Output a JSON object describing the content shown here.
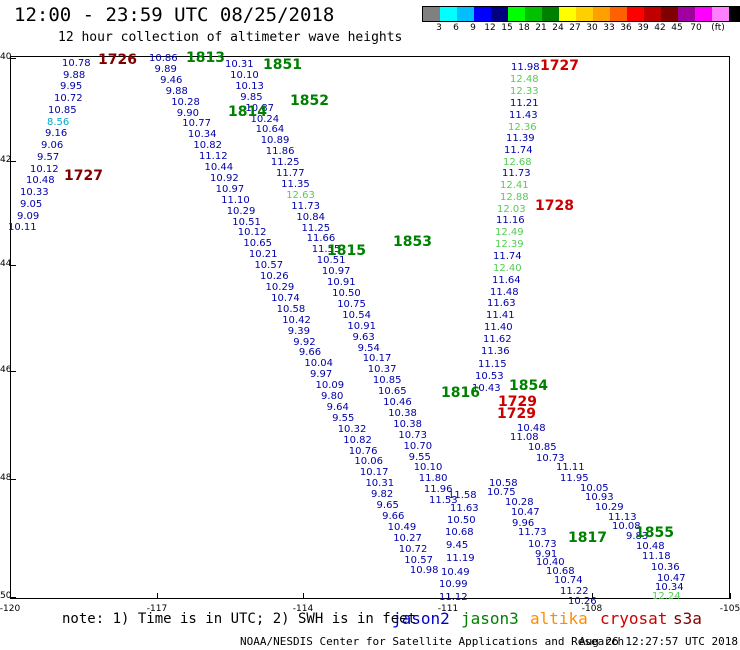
{
  "header": {
    "title": "12:00 - 23:59 UTC 08/25/2018",
    "subtitle": "12 hour collection of altimeter wave heights"
  },
  "colorbar": {
    "swatches": [
      "#808080",
      "#00ffff",
      "#00bfff",
      "#0000ff",
      "#000080",
      "#00ff00",
      "#00c000",
      "#008000",
      "#ffff00",
      "#ffd000",
      "#ffa000",
      "#ff6000",
      "#ff0000",
      "#c00000",
      "#800000",
      "#a000a0",
      "#ff00ff",
      "#ff80ff",
      "#000000"
    ],
    "labels": [
      "3",
      "6",
      "9",
      "12",
      "15",
      "18",
      "21",
      "24",
      "27",
      "30",
      "33",
      "36",
      "39",
      "42",
      "45",
      "70",
      "(ft)"
    ]
  },
  "axes": {
    "lat_labels": [
      "40",
      "42",
      "44",
      "46",
      "48",
      "50"
    ],
    "lon_labels": [
      "-120",
      "-117",
      "-114",
      "-111",
      "-108",
      "-105"
    ]
  },
  "legend": {
    "note": "note: 1) Time is in UTC; 2) SWH is in feet",
    "satellites": [
      {
        "name": "jason2",
        "color": "#0000cc"
      },
      {
        "name": "jason3",
        "color": "#008000"
      },
      {
        "name": "altika",
        "color": "#ff8c00"
      },
      {
        "name": "cryosat",
        "color": "#cc0000"
      },
      {
        "name": "s3a",
        "color": "#800000"
      }
    ]
  },
  "footer": {
    "credit": "NOAA/NESDIS Center for Satellite Applications and Research",
    "generated": "Aug 26 12:27:57 UTC 2018"
  },
  "orbit_labels": [
    {
      "text": "1726",
      "color": "#800000"
    },
    {
      "text": "1813",
      "color": "#008000"
    },
    {
      "text": "1851",
      "color": "#008000"
    },
    {
      "text": "1852",
      "color": "#008000"
    },
    {
      "text": "1814",
      "color": "#008000"
    },
    {
      "text": "1727",
      "color": "#800000"
    },
    {
      "text": "1727",
      "color": "#cc0000"
    },
    {
      "text": "1728",
      "color": "#cc0000"
    },
    {
      "text": "1815",
      "color": "#008000"
    },
    {
      "text": "1853",
      "color": "#008000"
    },
    {
      "text": "1854",
      "color": "#008000"
    },
    {
      "text": "1816",
      "color": "#008000"
    },
    {
      "text": "1729",
      "color": "#cc0000"
    },
    {
      "text": "1729",
      "color": "#cc0000"
    },
    {
      "text": "1817",
      "color": "#008000"
    },
    {
      "text": "1855",
      "color": "#008000"
    }
  ],
  "tracks": {
    "track_a": [
      "10.78",
      "9.88",
      "9.95",
      "10.72",
      "10.85",
      "8.56",
      "9.16",
      "9.06",
      "9.57",
      "10.12",
      "10.48",
      "10.33",
      "9.05",
      "9.09",
      "10.11"
    ],
    "track_b": [
      "10.86",
      "9.89",
      "9.46",
      "9.88",
      "10.28",
      "9.90",
      "10.77",
      "10.34",
      "10.82",
      "11.12",
      "10.44",
      "10.92",
      "10.97",
      "11.10",
      "10.29",
      "10.51",
      "10.12",
      "10.65",
      "10.21",
      "10.57",
      "10.26",
      "10.29",
      "10.74",
      "10.58",
      "10.42",
      "9.39",
      "9.92",
      "9.66",
      "10.04",
      "9.97",
      "10.09",
      "9.80",
      "9.64",
      "9.55",
      "10.32",
      "10.82",
      "10.76",
      "10.06",
      "10.17",
      "10.31",
      "9.82",
      "9.65",
      "9.66",
      "10.49",
      "10.27",
      "10.72",
      "10.57",
      "10.98"
    ],
    "track_c": [
      "10.31",
      "10.10",
      "10.13",
      "9.85",
      "10.87",
      "10.24",
      "10.64",
      "10.89",
      "11.86",
      "11.25",
      "11.77",
      "11.35",
      "12.63",
      "11.73",
      "10.84",
      "11.25",
      "11.66",
      "11.55",
      "10.51",
      "10.97",
      "10.91",
      "10.50",
      "10.75",
      "10.54",
      "10.91",
      "9.63",
      "9.54",
      "10.17",
      "10.37",
      "10.85",
      "10.65",
      "10.46",
      "10.38",
      "10.38",
      "10.73",
      "10.70",
      "9.55",
      "10.10",
      "11.80",
      "11.96",
      "11.53"
    ],
    "track_d": [
      "11.98",
      "12.48",
      "12.33",
      "11.21",
      "11.43",
      "12.36",
      "11.39",
      "11.74",
      "12.68",
      "11.73",
      "12.41",
      "12.88",
      "12.03",
      "11.16",
      "12.49",
      "12.39",
      "11.74",
      "12.40",
      "11.64",
      "11.48",
      "11.63",
      "11.41",
      "11.40",
      "11.62",
      "11.36",
      "11.15",
      "10.53",
      "10.43"
    ],
    "track_e": [
      "11.58",
      "11.63",
      "10.50",
      "10.68",
      "9.45",
      "11.19",
      "10.49",
      "10.99",
      "11.12"
    ],
    "track_f": [
      "10.58",
      "10.75",
      "10.28",
      "10.47",
      "9.96",
      "11.73",
      "10.73",
      "9.91",
      "10.40",
      "10.68",
      "10.74",
      "11.22",
      "10.26"
    ],
    "track_g": [
      "10.48",
      "11.08",
      "10.85",
      "10.73",
      "11.11",
      "11.95",
      "10.05",
      "10.93",
      "10.29",
      "11.13",
      "10.08",
      "9.83",
      "10.48",
      "11.18",
      "10.36",
      "10.47",
      "10.34",
      "12.24"
    ]
  }
}
